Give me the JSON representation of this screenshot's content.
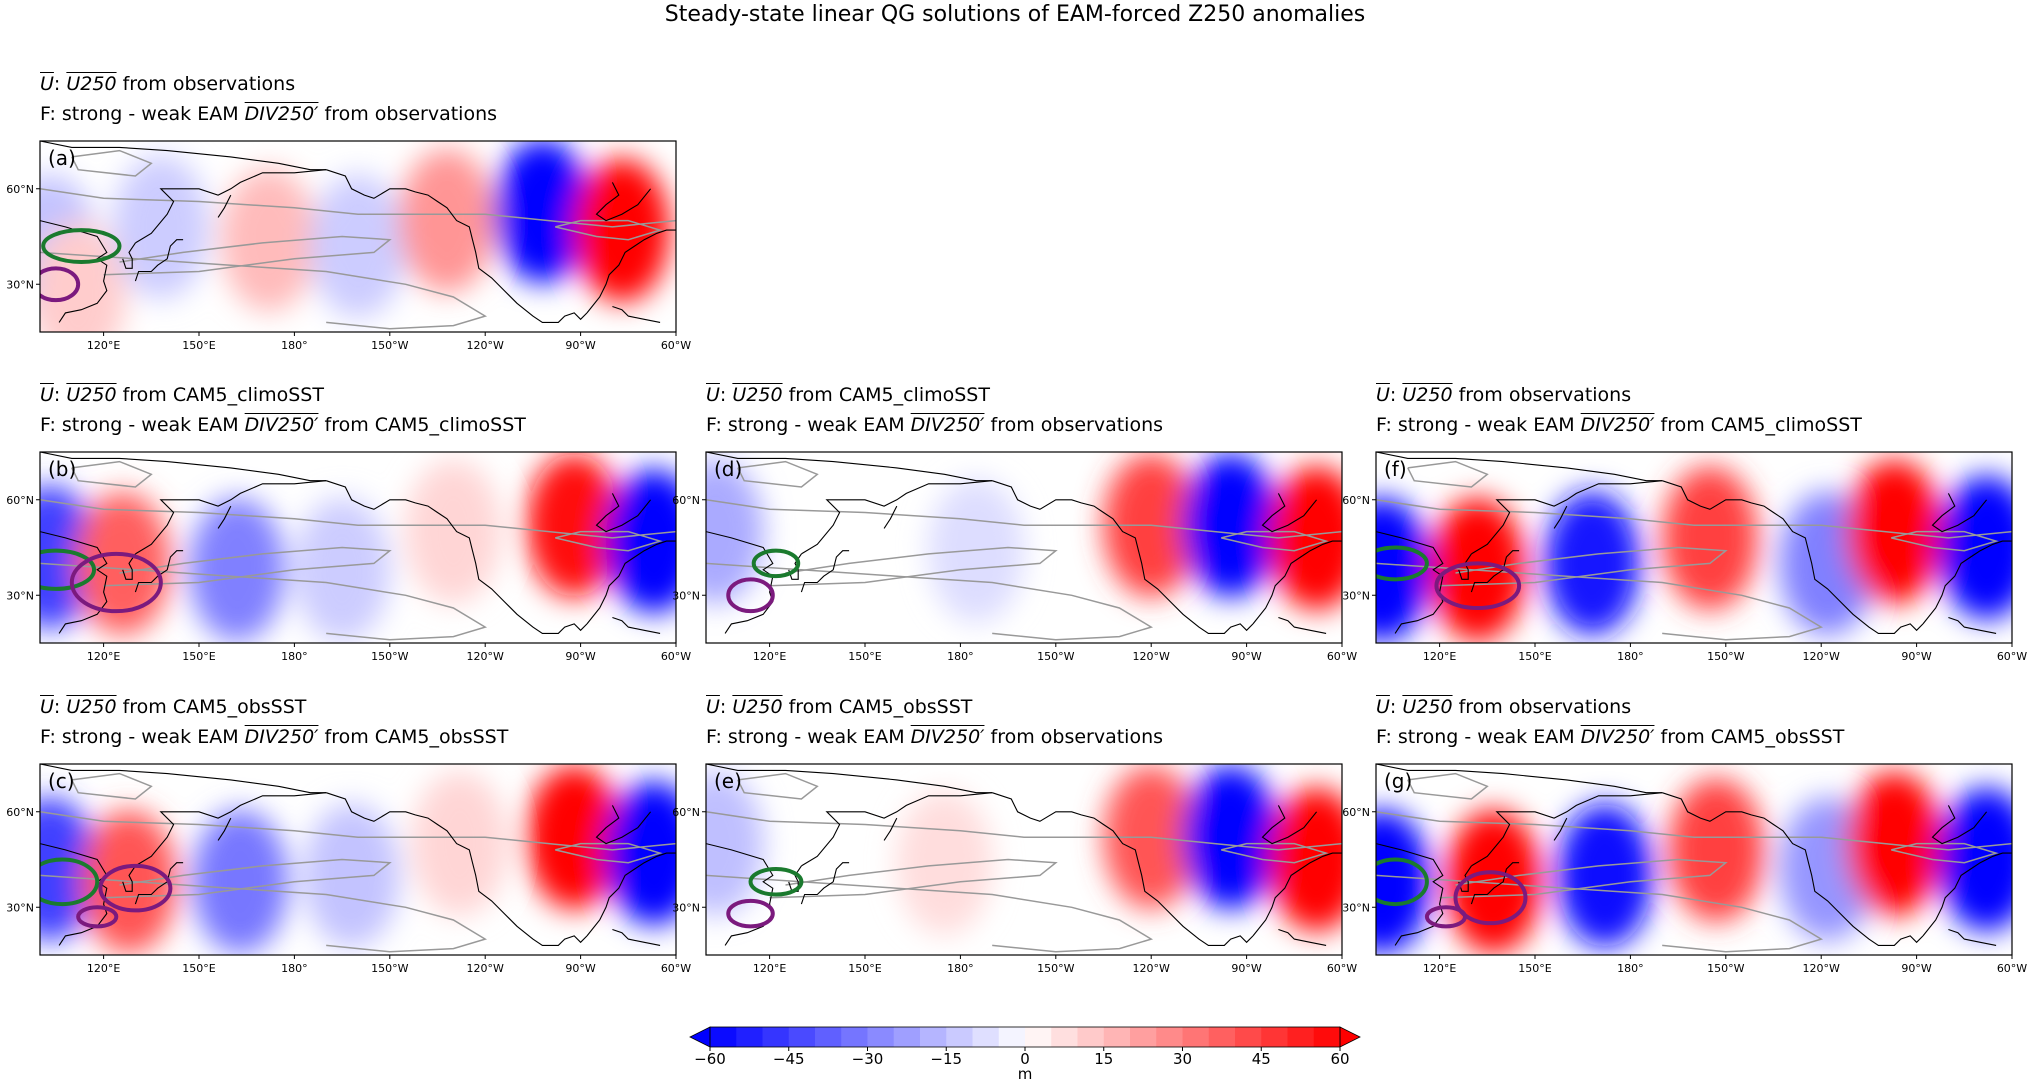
{
  "title": "Steady-state linear QG solutions of EAM-forced Z250 anomalies",
  "chart_data": {
    "type": "heatmap",
    "title": "Steady-state linear QG solutions of EAM-forced Z250 anomalies",
    "colorbar": {
      "min": -60,
      "max": 60,
      "ticks": [
        "−60",
        "−45",
        "−30",
        "−15",
        "0",
        "15",
        "30",
        "45",
        "60"
      ],
      "label": "m",
      "extend": "both",
      "colors": {
        "negative": "#0000ff",
        "neutral": "#ffffff",
        "positive": "#ff0000"
      }
    },
    "lat_ticks": [
      "30°N",
      "60°N"
    ],
    "lon_ticks": [
      "120°E",
      "150°E",
      "180°",
      "150°W",
      "120°W",
      "90°W",
      "60°W"
    ],
    "lon_range": [
      100,
      300
    ],
    "lat_range": [
      15,
      75
    ],
    "panels": [
      {
        "id": "a",
        "letter": "(a)",
        "u_source": "observations",
        "f_source": "observations",
        "blobs": [
          [
            103,
            42,
            -14
          ],
          [
            112,
            27,
            12
          ],
          [
            138,
            48,
            -12
          ],
          [
            172,
            44,
            16
          ],
          [
            200,
            42,
            -12
          ],
          [
            228,
            50,
            25
          ],
          [
            258,
            53,
            -62
          ],
          [
            283,
            47,
            60
          ]
        ],
        "green": [
          [
            113,
            42,
            12,
            5
          ]
        ],
        "purple": [
          [
            105,
            30,
            7,
            5
          ]
        ]
      },
      {
        "id": "b",
        "letter": "(b)",
        "u_source": "CAM5_climoSST",
        "f_source": "CAM5_climoSST",
        "blobs": [
          [
            103,
            42,
            -45
          ],
          [
            126,
            40,
            38
          ],
          [
            162,
            38,
            -30
          ],
          [
            195,
            38,
            -12
          ],
          [
            230,
            50,
            10
          ],
          [
            268,
            52,
            58
          ],
          [
            293,
            47,
            -65
          ]
        ],
        "green": [
          [
            105,
            38,
            12,
            6
          ]
        ],
        "purple": [
          [
            124,
            34,
            14,
            9
          ]
        ]
      },
      {
        "id": "d",
        "letter": "(d)",
        "u_source": "CAM5_climoSST",
        "f_source": "observations",
        "blobs": [
          [
            103,
            50,
            -20
          ],
          [
            185,
            44,
            -8
          ],
          [
            240,
            52,
            45
          ],
          [
            265,
            52,
            -60
          ],
          [
            292,
            48,
            62
          ]
        ],
        "green": [
          [
            122,
            40,
            7,
            4
          ]
        ],
        "purple": [
          [
            114,
            30,
            7,
            5
          ]
        ]
      },
      {
        "id": "f",
        "letter": "(f)",
        "u_source": "observations",
        "f_source": "CAM5_climoSST",
        "blobs": [
          [
            102,
            38,
            -65
          ],
          [
            132,
            38,
            60
          ],
          [
            168,
            40,
            -55
          ],
          [
            205,
            48,
            45
          ],
          [
            242,
            40,
            -30
          ],
          [
            263,
            50,
            60
          ],
          [
            292,
            45,
            -60
          ]
        ],
        "green": [
          [
            106,
            40,
            10,
            5
          ]
        ],
        "purple": [
          [
            132,
            33,
            13,
            7
          ]
        ]
      },
      {
        "id": "c",
        "letter": "(c)",
        "u_source": "CAM5_obsSST",
        "f_source": "CAM5_obsSST",
        "blobs": [
          [
            103,
            42,
            -45
          ],
          [
            128,
            38,
            40
          ],
          [
            163,
            38,
            -32
          ],
          [
            198,
            40,
            -14
          ],
          [
            232,
            50,
            10
          ],
          [
            268,
            52,
            60
          ],
          [
            293,
            47,
            -65
          ]
        ],
        "green": [
          [
            107,
            38,
            11,
            7
          ]
        ],
        "purple": [
          [
            130,
            36,
            11,
            7
          ],
          [
            118,
            27,
            6,
            3
          ]
        ]
      },
      {
        "id": "e",
        "letter": "(e)",
        "u_source": "CAM5_obsSST",
        "f_source": "observations",
        "blobs": [
          [
            103,
            50,
            -15
          ],
          [
            175,
            44,
            8
          ],
          [
            240,
            52,
            40
          ],
          [
            265,
            52,
            -60
          ],
          [
            292,
            45,
            62
          ]
        ],
        "green": [
          [
            122,
            38,
            8,
            4
          ]
        ],
        "purple": [
          [
            114,
            28,
            7,
            4
          ]
        ]
      },
      {
        "id": "g",
        "letter": "(g)",
        "u_source": "observations",
        "f_source": "CAM5_obsSST",
        "blobs": [
          [
            102,
            38,
            -65
          ],
          [
            137,
            38,
            60
          ],
          [
            172,
            40,
            -58
          ],
          [
            207,
            48,
            45
          ],
          [
            242,
            42,
            -25
          ],
          [
            263,
            50,
            60
          ],
          [
            292,
            45,
            -60
          ]
        ],
        "green": [
          [
            106,
            38,
            10,
            7
          ]
        ],
        "purple": [
          [
            136,
            33,
            11,
            8
          ],
          [
            122,
            27,
            6,
            3
          ]
        ]
      }
    ]
  },
  "panel_text": {
    "u_prefix": "U",
    "u_var": "U250",
    "from": "from",
    "f_prefix": "F: strong - weak EAM",
    "f_var": "DIV250′"
  }
}
